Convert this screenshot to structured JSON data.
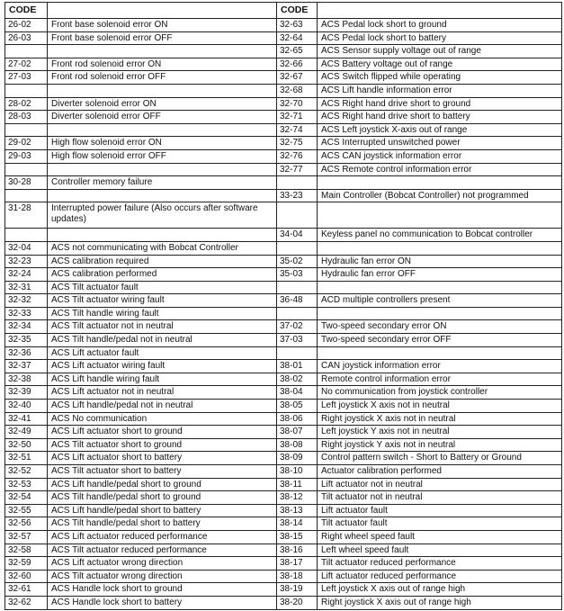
{
  "header": {
    "code_left": "CODE",
    "desc_left": "",
    "code_right": "CODE",
    "desc_right": ""
  },
  "rows": [
    [
      "26-02",
      "Front base solenoid error ON",
      "32-63",
      "ACS Pedal lock short to ground"
    ],
    [
      "26-03",
      "Front base solenoid error OFF",
      "32-64",
      "ACS Pedal lock short to battery"
    ],
    [
      "",
      "",
      "32-65",
      "ACS Sensor supply voltage out of range"
    ],
    [
      "27-02",
      "Front rod solenoid error ON",
      "32-66",
      "ACS Battery voltage out of range"
    ],
    [
      "27-03",
      "Front rod solenoid error OFF",
      "32-67",
      "ACS Switch flipped while operating"
    ],
    [
      "",
      "",
      "32-68",
      "ACS Lift handle information error"
    ],
    [
      "28-02",
      "Diverter solenoid error ON",
      "32-70",
      "ACS Right hand drive short to ground"
    ],
    [
      "28-03",
      "Diverter solenoid error OFF",
      "32-71",
      "ACS Right hand drive short to battery"
    ],
    [
      "",
      "",
      "32-74",
      "ACS Left joystick X-axis out of range"
    ],
    [
      "29-02",
      "High flow solenoid error ON",
      "32-75",
      "ACS Interrupted unswitched power"
    ],
    [
      "29-03",
      "High flow solenoid error OFF",
      "32-76",
      "ACS CAN joystick information error"
    ],
    [
      "",
      "",
      "32-77",
      "ACS Remote control information error"
    ],
    [
      "30-28",
      "Controller memory failure",
      "",
      ""
    ],
    [
      "",
      "",
      "33-23",
      "Main Controller (Bobcat Controller) not programmed"
    ],
    [
      "31-28",
      "Interrupted power failure (Also occurs after software updates)",
      "",
      ""
    ],
    [
      "",
      "",
      "34-04",
      "Keyless panel no communication to Bobcat controller"
    ],
    [
      "32-04",
      "ACS not communicating with Bobcat Controller",
      "",
      ""
    ],
    [
      "32-23",
      "ACS calibration required",
      "35-02",
      "Hydraulic fan error ON"
    ],
    [
      "32-24",
      "ACS calibration performed",
      "35-03",
      "Hydraulic fan error OFF"
    ],
    [
      "32-31",
      "ACS Tilt actuator fault",
      "",
      ""
    ],
    [
      "32-32",
      "ACS Tilt actuator wiring fault",
      "36-48",
      "ACD multiple controllers present"
    ],
    [
      "32-33",
      "ACS Tilt handle wiring fault",
      "",
      ""
    ],
    [
      "32-34",
      "ACS Tilt actuator not in neutral",
      "37-02",
      "Two-speed secondary error ON"
    ],
    [
      "32-35",
      "ACS Tilt handle/pedal not in neutral",
      "37-03",
      "Two-speed secondary error OFF"
    ],
    [
      "32-36",
      "ACS Lift actuator fault",
      "",
      ""
    ],
    [
      "32-37",
      "ACS Lift actuator wiring fault",
      "38-01",
      "CAN joystick information error"
    ],
    [
      "32-38",
      "ACS Lift handle wiring fault",
      "38-02",
      "Remote control information error"
    ],
    [
      "32-39",
      "ACS Lift actuator not in neutral",
      "38-04",
      "No communication from joystick controller"
    ],
    [
      "32-40",
      "ACS Lift handle/pedal not in neutral",
      "38-05",
      "Left joystick X axis not in neutral"
    ],
    [
      "32-41",
      "ACS No communication",
      "38-06",
      "Right joystick X axis not in neutral"
    ],
    [
      "32-49",
      "ACS Lift actuator short to ground",
      "38-07",
      "Left joystick Y axis not in neutral"
    ],
    [
      "32-50",
      "ACS Tilt actuator short to ground",
      "38-08",
      "Right joystick Y axis not in neutral"
    ],
    [
      "32-51",
      "ACS Lift actuator short to battery",
      "38-09",
      "Control pattern switch - Short to Battery or Ground"
    ],
    [
      "32-52",
      "ACS Tilt actuator short to battery",
      "38-10",
      "Actuator calibration performed"
    ],
    [
      "32-53",
      "ACS Lift handle/pedal short to ground",
      "38-11",
      "Lift actuator not in neutral"
    ],
    [
      "32-54",
      "ACS Tilt handle/pedal short to ground",
      "38-12",
      "Tilt actuator not in neutral"
    ],
    [
      "32-55",
      "ACS Lift handle/pedal short to battery",
      "38-13",
      "Lift actuator fault"
    ],
    [
      "32-56",
      "ACS Tilt handle/pedal short to battery",
      "38-14",
      "Tilt actuator fault"
    ],
    [
      "32-57",
      "ACS Lift actuator reduced performance",
      "38-15",
      "Right wheel speed fault"
    ],
    [
      "32-58",
      "ACS Tilt actuator reduced performance",
      "38-16",
      "Left wheel speed fault"
    ],
    [
      "32-59",
      "ACS Lift actuator wrong direction",
      "38-17",
      "Tilt actuator reduced performance"
    ],
    [
      "32-60",
      "ACS Tilt actuator wrong direction",
      "38-18",
      "Lift actuator reduced performance"
    ],
    [
      "32-61",
      "ACS Handle lock short to ground",
      "38-19",
      "Left joystick X axis out of range high"
    ],
    [
      "32-62",
      "ACS Handle lock short to battery",
      "38-20",
      "Right joystick X axis out of range high"
    ]
  ]
}
